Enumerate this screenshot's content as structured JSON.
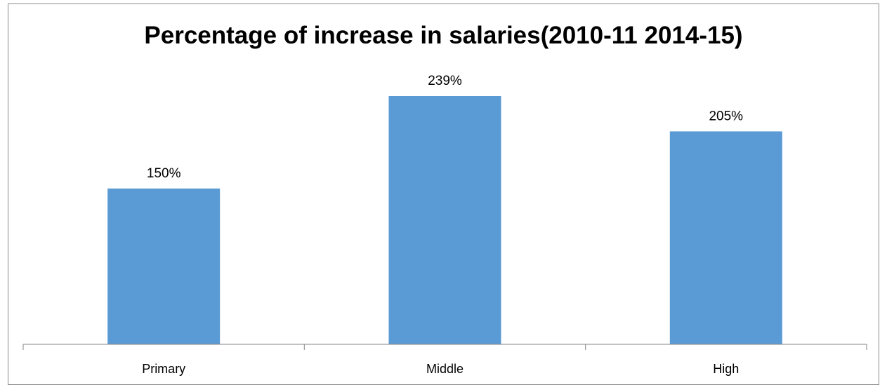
{
  "chart_data": {
    "type": "bar",
    "title": "Percentage of increase in salaries(2010-11 2014-15)",
    "categories": [
      "Primary",
      "Middle",
      "High"
    ],
    "values": [
      150,
      239,
      205
    ],
    "data_labels": [
      "150%",
      "239%",
      "205%"
    ],
    "ylim": [
      0,
      270
    ],
    "grid": false,
    "legend": "none",
    "colors": {
      "bar": "#5B9BD5",
      "axis": "#868686"
    }
  }
}
